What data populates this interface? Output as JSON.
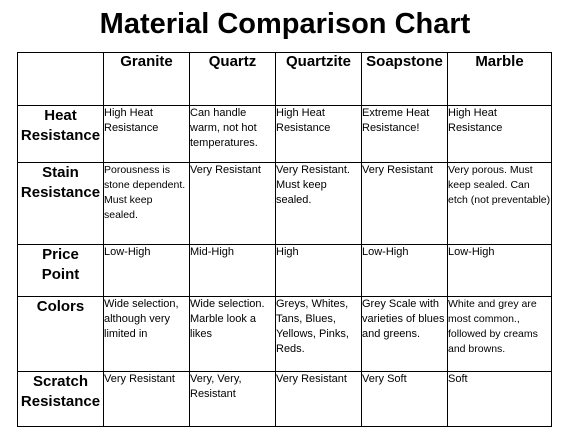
{
  "title": "Material Comparison Chart",
  "columns": [
    "Granite",
    "Quartz",
    "Quartzite",
    "Soapstone",
    "Marble"
  ],
  "rows": [
    {
      "label": [
        "Heat",
        "Resistance"
      ],
      "cells": [
        "High Heat Resistance",
        "Can handle warm, not hot temperatures.",
        "High Heat Resistance",
        "Extreme Heat Resistance!",
        "High Heat Resistance"
      ]
    },
    {
      "label": [
        "Stain",
        "Resistance"
      ],
      "cells": [
        "Porousness is stone dependent. Must keep sealed.",
        "Very Resistant",
        "Very Resistant. Must keep sealed.",
        "Very Resistant",
        "Very porous. Must keep sealed. Can etch (not preventable)"
      ]
    },
    {
      "label": [
        "Price",
        "Point"
      ],
      "cells": [
        "Low-High",
        "Mid-High",
        "High",
        "Low-High",
        "Low-High"
      ]
    },
    {
      "label": [
        "Colors"
      ],
      "cells": [
        "Wide selection, although very limited in",
        "Wide selection. Marble look a likes",
        "Greys, Whites, Tans, Blues, Yellows, Pinks, Reds.",
        "Grey Scale with varieties of blues and greens.",
        "White and grey are most common., followed by creams and browns."
      ]
    },
    {
      "label": [
        "Scratch",
        "Resistance"
      ],
      "cells": [
        "Very Resistant",
        "Very, Very, Resistant",
        "Very Resistant",
        "Very Soft",
        "Soft"
      ]
    }
  ]
}
